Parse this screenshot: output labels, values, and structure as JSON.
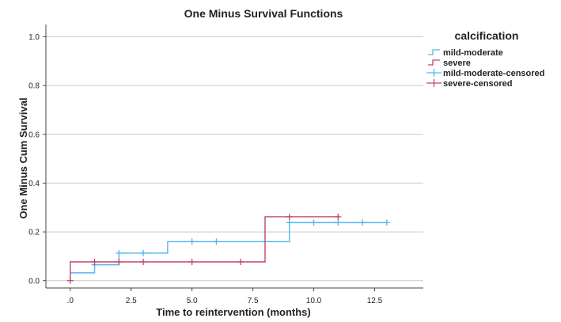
{
  "chart_data": {
    "type": "line",
    "step": true,
    "title": "One Minus Survival Functions",
    "xlabel": "Time to reintervention (months)",
    "ylabel": "One Minus Cum Survival",
    "xlim": [
      -1,
      14.5
    ],
    "ylim": [
      -0.03,
      1.05
    ],
    "x_ticks": [
      0,
      2.5,
      5,
      7.5,
      10,
      12.5
    ],
    "x_tick_labels": [
      ".0",
      "2.5",
      "5.0",
      "7.5",
      "10.0",
      "12.5"
    ],
    "y_ticks": [
      0,
      0.2,
      0.4,
      0.6,
      0.8,
      1.0
    ],
    "y_tick_labels": [
      "0.0",
      "0.2",
      "0.4",
      "0.6",
      "0.8",
      "1.0"
    ],
    "grid": "horizontal",
    "legend": {
      "title": "calcification",
      "position": "right",
      "entries": [
        {
          "label": "mild-moderate",
          "kind": "step",
          "color": "#55b6ef"
        },
        {
          "label": "severe",
          "kind": "step",
          "color": "#c1456b"
        },
        {
          "label": "mild-moderate-censored",
          "kind": "censor",
          "color": "#55b6ef"
        },
        {
          "label": "severe-censored",
          "kind": "censor",
          "color": "#c1456b"
        }
      ]
    },
    "series": [
      {
        "name": "mild-moderate",
        "color": "#55b6ef",
        "steps": [
          {
            "x": 0,
            "y": 0
          },
          {
            "x": 0,
            "y": 0.032
          },
          {
            "x": 1,
            "y": 0.065
          },
          {
            "x": 2,
            "y": 0.113
          },
          {
            "x": 4,
            "y": 0.16
          },
          {
            "x": 9,
            "y": 0.238
          }
        ],
        "end_x": 13,
        "censored": [
          {
            "x": 1,
            "y": 0.065
          },
          {
            "x": 2,
            "y": 0.113
          },
          {
            "x": 3,
            "y": 0.113
          },
          {
            "x": 5,
            "y": 0.16
          },
          {
            "x": 6,
            "y": 0.16
          },
          {
            "x": 9,
            "y": 0.238
          },
          {
            "x": 10,
            "y": 0.238
          },
          {
            "x": 11,
            "y": 0.238
          },
          {
            "x": 12,
            "y": 0.238
          },
          {
            "x": 13,
            "y": 0.238
          }
        ]
      },
      {
        "name": "severe",
        "color": "#c1456b",
        "steps": [
          {
            "x": 0,
            "y": 0
          },
          {
            "x": 0,
            "y": 0.077
          },
          {
            "x": 8,
            "y": 0.262
          }
        ],
        "end_x": 11,
        "censored": [
          {
            "x": 0,
            "y": 0
          },
          {
            "x": 1,
            "y": 0.077
          },
          {
            "x": 2,
            "y": 0.077
          },
          {
            "x": 3,
            "y": 0.077
          },
          {
            "x": 5,
            "y": 0.077
          },
          {
            "x": 7,
            "y": 0.077
          },
          {
            "x": 9,
            "y": 0.262
          },
          {
            "x": 11,
            "y": 0.262
          }
        ]
      }
    ]
  }
}
